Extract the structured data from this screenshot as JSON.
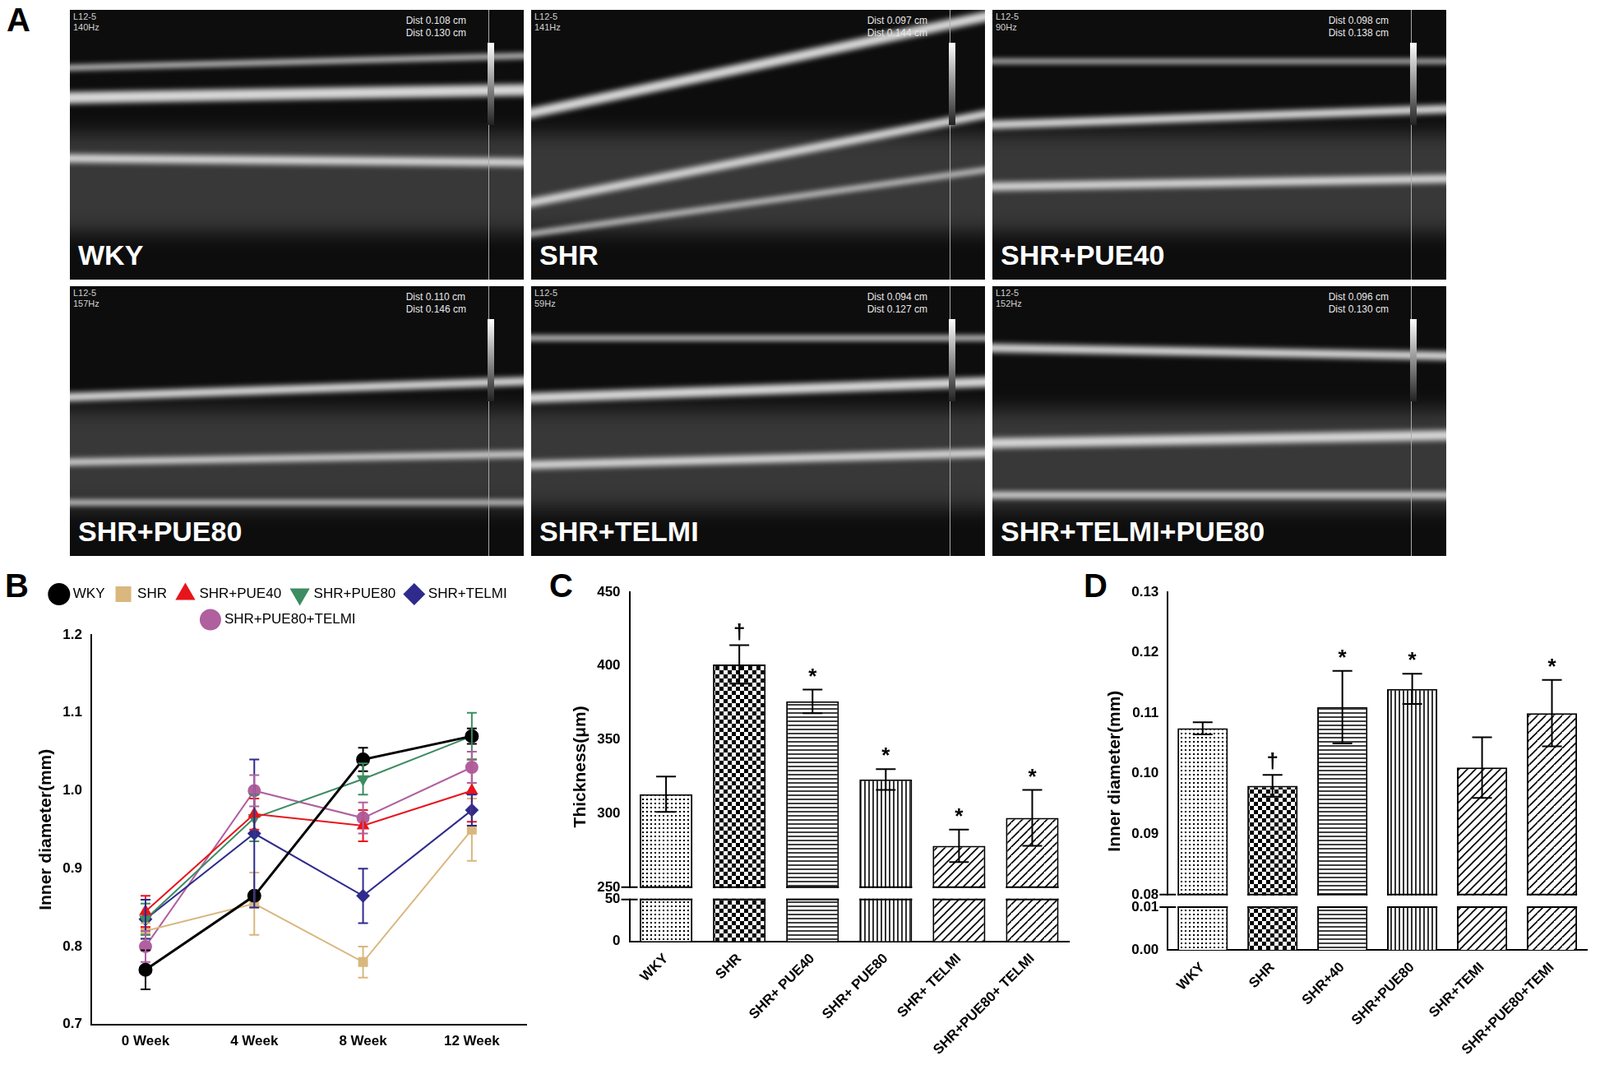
{
  "panel_labels": [
    "A",
    "B",
    "C",
    "D"
  ],
  "image_panel": {
    "images": [
      {
        "label": "WKY",
        "probe": "L12-5",
        "frequency": "140Hz",
        "measurements": [
          "Dist 0.108 cm",
          "Dist 0.130 cm"
        ]
      },
      {
        "label": "SHR",
        "probe": "L12-5",
        "frequency": "141Hz",
        "measurements": [
          "Dist 0.097 cm",
          "Dist 0.144 cm"
        ]
      },
      {
        "label": "SHR+PUE40",
        "probe": "L12-5",
        "frequency": "90Hz",
        "measurements": [
          "Dist 0.098 cm",
          "Dist 0.138 cm"
        ]
      },
      {
        "label": "SHR+PUE80",
        "probe": "L12-5",
        "frequency": "157Hz",
        "measurements": [
          "Dist 0.110 cm",
          "Dist 0.146 cm"
        ]
      },
      {
        "label": "SHR+TELMI",
        "probe": "L12-5",
        "frequency": "59Hz",
        "measurements": [
          "Dist 0.094 cm",
          "Dist 0.127 cm"
        ]
      },
      {
        "label": "SHR+TELMI+PUE80",
        "probe": "L12-5",
        "frequency": "152Hz",
        "measurements": [
          "Dist 0.096 cm",
          "Dist 0.130 cm"
        ]
      }
    ]
  },
  "chart_data": [
    {
      "type": "line",
      "y_label": "Inner diameter(mm)",
      "categories": [
        "0 Week",
        "4 Week",
        "8 Week",
        "12 Week"
      ],
      "ylim": [
        0.7,
        1.2
      ],
      "yticks": [
        0.7,
        0.8,
        0.9,
        {
          "value": 1,
          "label": "1.0"
        },
        1.1,
        1.2
      ],
      "legend": "top",
      "series": [
        {
          "name": "WKY",
          "color": "#000000",
          "marker": "circle",
          "values": [
            0.77,
            0.865,
            1.04,
            1.07
          ],
          "errors": [
            0.025,
            0.005,
            0.015,
            0.01
          ]
        },
        {
          "name": "SHR",
          "color": "#d9b77e",
          "marker": "square",
          "values": [
            0.82,
            0.855,
            0.78,
            0.95
          ],
          "errors": [
            0.01,
            0.04,
            0.02,
            0.04
          ]
        },
        {
          "name": "SHR+PUE40",
          "color": "#e8141b",
          "marker": "triangle",
          "values": [
            0.845,
            0.97,
            0.955,
            1.0
          ],
          "errors": [
            0.02,
            0.02,
            0.02,
            0.04
          ]
        },
        {
          "name": "SHR+PUE80",
          "color": "#3d8c62",
          "marker": "triangle-down",
          "values": [
            0.835,
            0.965,
            1.015,
            1.07
          ],
          "errors": [
            0.02,
            0.03,
            0.02,
            0.03
          ]
        },
        {
          "name": "SHR+TELMI",
          "color": "#2e2b8c",
          "marker": "diamond",
          "values": [
            0.835,
            0.945,
            0.865,
            0.975
          ],
          "errors": [
            0.025,
            0.095,
            0.035,
            0.02
          ]
        },
        {
          "name": "SHR+PUE80+TELMI",
          "color": "#b0609f",
          "marker": "circle",
          "values": [
            0.8,
            1.0,
            0.965,
            1.03
          ],
          "errors": [
            0.02,
            0.02,
            0.02,
            0.02
          ]
        }
      ]
    },
    {
      "type": "bar",
      "y_label": "Thickness(μm)",
      "categories": [
        "WKY",
        "SHR",
        "SHR+ PUE40",
        "SHR+ PUE80",
        "SHR+ TELMI",
        "SHR+PUE80+ TELMI"
      ],
      "values": [
        313,
        401,
        376,
        323,
        278,
        297
      ],
      "errors": [
        12,
        13,
        8,
        7,
        11,
        19
      ],
      "significance": [
        null,
        "†",
        "*",
        "*",
        "*",
        "*"
      ],
      "color": "#000000",
      "ylim": [
        0,
        450
      ],
      "yticks": [
        0,
        50,
        250,
        300,
        350,
        400,
        450
      ]
    },
    {
      "type": "bar",
      "y_label": "Inner diameter(mm)",
      "categories": [
        "WKY",
        "SHR",
        "SHR+40",
        "SHR+PUE80",
        "SHR+TEMI",
        "SHR+PUE80+TEMI"
      ],
      "values": [
        0.1075,
        0.098,
        0.111,
        0.114,
        0.101,
        0.11
      ],
      "errors": [
        0.001,
        0.0018,
        0.006,
        0.0025,
        0.005,
        0.0055
      ],
      "significance": [
        null,
        "†",
        "*",
        "*",
        null,
        "*"
      ],
      "color": "#000000",
      "ylim": [
        0,
        0.13
      ],
      "yticks": [
        {
          "value": 0,
          "label": "0.00"
        },
        {
          "value": 0.01,
          "label": "0.01"
        },
        {
          "value": 0.08,
          "label": "0.08"
        },
        {
          "value": 0.09,
          "label": "0.09"
        },
        {
          "value": 0.1,
          "label": "0.10"
        },
        {
          "value": 0.11,
          "label": "0.11"
        },
        {
          "value": 0.12,
          "label": "0.12"
        },
        {
          "value": 0.13,
          "label": "0.13"
        }
      ]
    }
  ]
}
